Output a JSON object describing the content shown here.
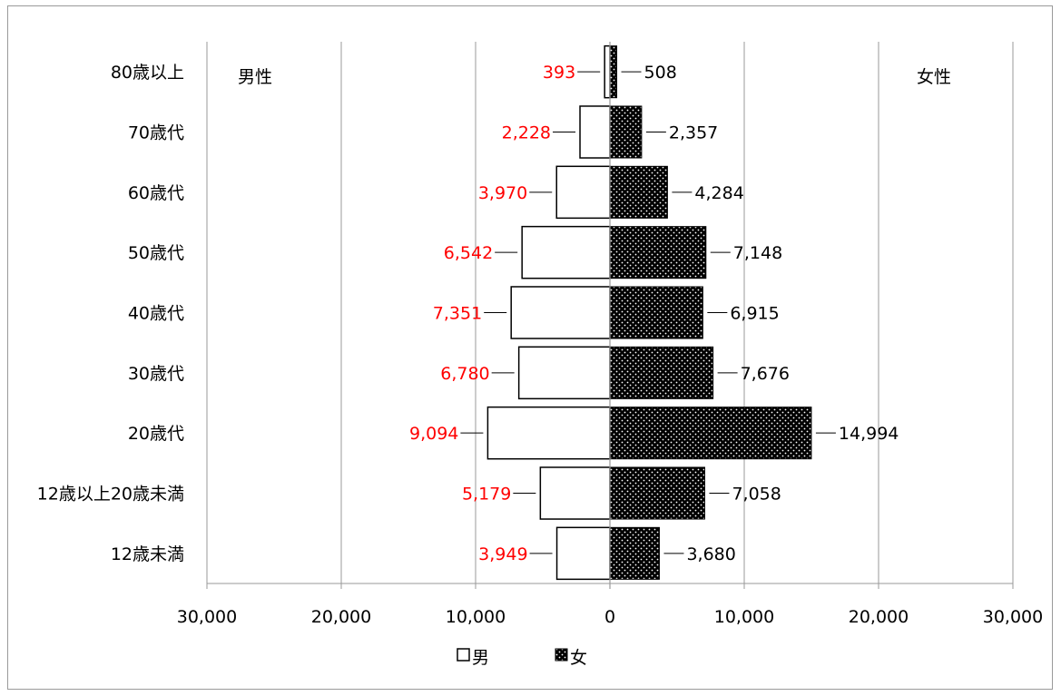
{
  "chart_data": {
    "type": "bar",
    "orientation": "horizontal",
    "categories": [
      "12歳未満",
      "12歳以上20歳未満",
      "20歳代",
      "30歳代",
      "40歳代",
      "50歳代",
      "60歳代",
      "70歳代",
      "80歳以上"
    ],
    "series": [
      {
        "name": "男",
        "values": [
          3949,
          5179,
          9094,
          6780,
          7351,
          6542,
          3970,
          2228,
          393
        ],
        "labels": [
          "3,949",
          "5,179",
          "9,094",
          "6,780",
          "7,351",
          "6,542",
          "3,970",
          "2,228",
          "393"
        ]
      },
      {
        "name": "女",
        "values": [
          3680,
          7058,
          14994,
          7676,
          6915,
          7148,
          4284,
          2357,
          508
        ],
        "labels": [
          "3,680",
          "7,058",
          "14,994",
          "7,676",
          "6,915",
          "7,148",
          "4,284",
          "2,357",
          "508"
        ]
      }
    ],
    "xlim": [
      -30000,
      30000
    ],
    "xticks": [
      -30000,
      -20000,
      -10000,
      0,
      10000,
      20000,
      30000
    ],
    "tick_labels": [
      "30,000",
      "20,000",
      "10,000",
      "0",
      "10,000",
      "20,000",
      "30,000"
    ],
    "side_labels": {
      "left": "男性",
      "right": "女性"
    },
    "grid": true,
    "legend_position": "bottom",
    "colors": {
      "male_fill": "#ffffff",
      "female_fill": "#000000",
      "male_label": "#ff0000",
      "female_label": "#000000",
      "grid": "#999999"
    }
  }
}
